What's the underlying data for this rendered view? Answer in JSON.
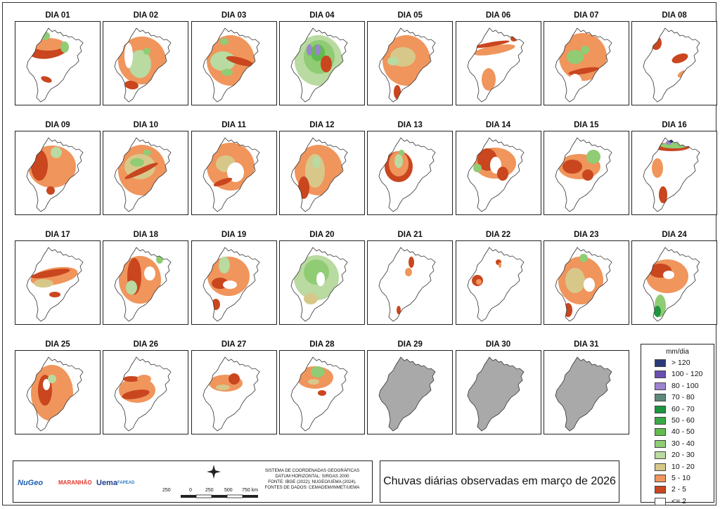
{
  "title": "Chuvas diárias observadas em março de 2026",
  "days": [
    "DIA 01",
    "DIA 02",
    "DIA 03",
    "DIA 04",
    "DIA 05",
    "DIA 06",
    "DIA 07",
    "DIA 08",
    "DIA 09",
    "DIA 10",
    "DIA 11",
    "DIA 12",
    "DIA 13",
    "DIA 14",
    "DIA 15",
    "DIA 16",
    "DIA 17",
    "DIA 18",
    "DIA 19",
    "DIA 20",
    "DIA 21",
    "DIA 22",
    "DIA 23",
    "DIA 24",
    "DIA 25",
    "DIA 26",
    "DIA 27",
    "DIA 28",
    "DIA 29",
    "DIA 30",
    "DIA 31"
  ],
  "legend": {
    "title": "mm/dia",
    "classes": [
      {
        "label": "> 120",
        "color": "#2b3a7a"
      },
      {
        "label": "100 - 120",
        "color": "#6a4fb0"
      },
      {
        "label": "80 - 100",
        "color": "#9c84cf"
      },
      {
        "label": "70 - 80",
        "color": "#5f8a7a"
      },
      {
        "label": "60 - 70",
        "color": "#1e9640"
      },
      {
        "label": "50 - 60",
        "color": "#3aaa47"
      },
      {
        "label": "40 - 50",
        "color": "#62bb4f"
      },
      {
        "label": "30 - 40",
        "color": "#8fcc74"
      },
      {
        "label": "20 - 30",
        "color": "#b9daa0"
      },
      {
        "label": "10 - 20",
        "color": "#d7c88a"
      },
      {
        "label": "5 - 10",
        "color": "#f0955c"
      },
      {
        "label": "2 - 5",
        "color": "#c9461f"
      },
      {
        "label": "<= 2",
        "color": "#ffffff"
      }
    ]
  },
  "nodata_color": "#a9a9a9",
  "info_lines": [
    "SISTEMA DE COORDENADAS GEOGRÁFICAS",
    "DATUM HORIZONTAL: SIRGAS 2000",
    "FONTE: IBGE (2022); NUGEO/UEMA (2024).",
    "FONTES DE DADOS: CEMADEM/INMET/UEMA"
  ],
  "scale": {
    "labels": [
      "250",
      "0",
      "250",
      "500",
      "750 km"
    ]
  },
  "logos": [
    "NuGeo",
    "MARANHÃO",
    "Uema",
    "FAPEAD"
  ]
}
